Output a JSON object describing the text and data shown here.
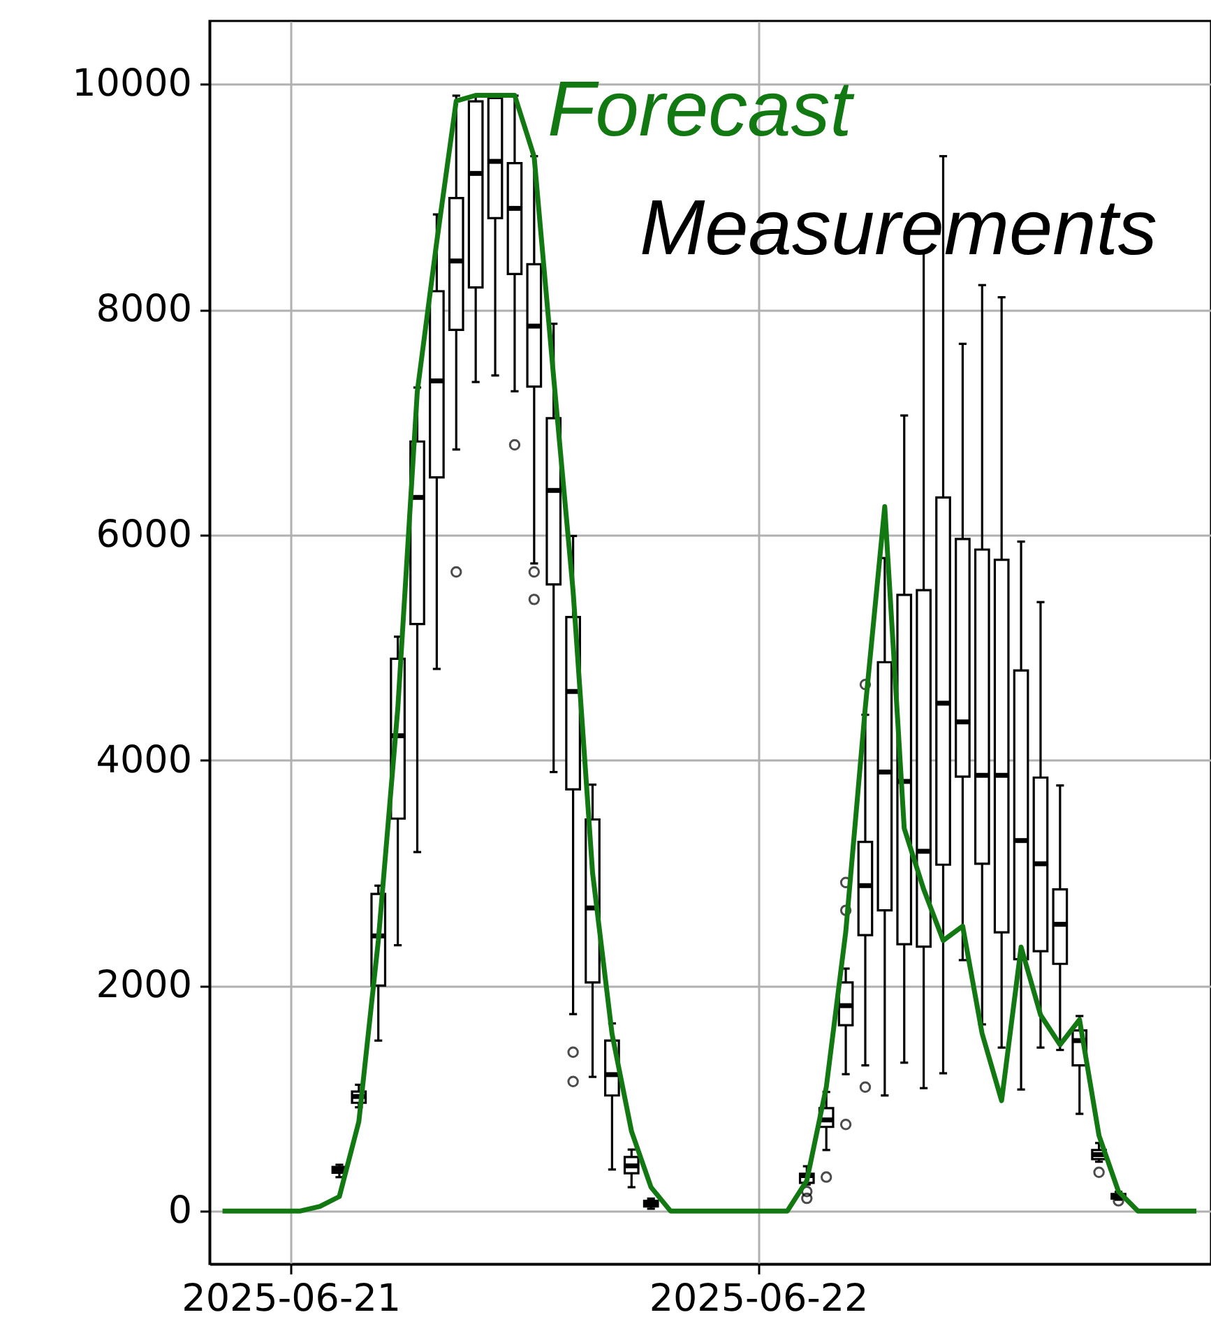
{
  "chart_data": {
    "type": "box",
    "x": [
      "2025-06-20T20:30",
      "2025-06-20T21:30",
      "2025-06-20T22:30",
      "2025-06-20T23:30",
      "2025-06-21T00:30",
      "2025-06-21T01:30",
      "2025-06-21T02:30",
      "2025-06-21T03:30",
      "2025-06-21T04:30",
      "2025-06-21T05:30",
      "2025-06-21T06:30",
      "2025-06-21T07:30",
      "2025-06-21T08:30",
      "2025-06-21T09:30",
      "2025-06-21T10:30",
      "2025-06-21T11:30",
      "2025-06-21T12:30",
      "2025-06-21T13:30",
      "2025-06-21T14:30",
      "2025-06-21T15:30",
      "2025-06-21T16:30",
      "2025-06-21T17:30",
      "2025-06-21T18:30",
      "2025-06-21T19:30",
      "2025-06-21T20:30",
      "2025-06-21T21:30",
      "2025-06-21T22:30",
      "2025-06-21T23:30",
      "2025-06-22T00:30",
      "2025-06-22T01:30",
      "2025-06-22T02:30",
      "2025-06-22T03:30",
      "2025-06-22T04:30",
      "2025-06-22T05:30",
      "2025-06-22T06:30",
      "2025-06-22T07:30",
      "2025-06-22T08:30",
      "2025-06-22T09:30",
      "2025-06-22T10:30",
      "2025-06-22T11:30",
      "2025-06-22T12:30",
      "2025-06-22T13:30",
      "2025-06-22T14:30",
      "2025-06-22T15:30",
      "2025-06-22T16:30",
      "2025-06-22T17:30",
      "2025-06-22T18:30",
      "2025-06-22T19:30",
      "2025-06-22T20:30",
      "2025-06-22T21:30",
      "2025-06-22T22:30"
    ],
    "xlim": [
      "2025-06-20T19:50",
      "2025-06-22T23:15"
    ],
    "xticks": [
      "2025-06-21",
      "2025-06-22"
    ],
    "ylim": [
      -470,
      10560
    ],
    "yticks": [
      0,
      2000,
      4000,
      6000,
      8000,
      10000
    ],
    "grid": true,
    "series": [
      {
        "name": "Measurements",
        "type": "box",
        "color": "#000000",
        "boxes": [
          null,
          null,
          null,
          null,
          null,
          null,
          {
            "low": 300,
            "q1": 340,
            "median": 370,
            "q3": 390,
            "high": 410
          },
          {
            "low": 920,
            "q1": 960,
            "median": 1016,
            "q3": 1060,
            "high": 1120
          },
          {
            "low": 1512,
            "q1": 2000,
            "median": 2441,
            "q3": 2813,
            "high": 2887
          },
          {
            "low": 2358,
            "q1": 3482,
            "median": 4217,
            "q3": 4900,
            "high": 5096
          },
          {
            "low": 3185,
            "q1": 5208,
            "median": 6332,
            "q3": 6828,
            "high": 7307
          },
          {
            "low": 4810,
            "q1": 6510,
            "median": 7366,
            "q3": 8162,
            "high": 8843
          },
          {
            "low": 6757,
            "q1": 7819,
            "median": 8430,
            "q3": 8988,
            "high": 9897,
            "outliers": [
              5671
            ]
          },
          {
            "low": 7356,
            "q1": 8195,
            "median": 9207,
            "q3": 9847,
            "high": 9890
          },
          {
            "low": 7414,
            "q1": 8810,
            "median": 9314,
            "q3": 9876,
            "high": 9900
          },
          {
            "low": 7274,
            "q1": 8315,
            "median": 8897,
            "q3": 9298,
            "high": 9897,
            "outliers": [
              6799
            ]
          },
          {
            "low": 5746,
            "q1": 7315,
            "median": 7852,
            "q3": 8401,
            "high": 9360,
            "outliers": [
              5671,
              5427
            ]
          },
          {
            "low": 3895,
            "q1": 5560,
            "median": 6394,
            "q3": 7035,
            "high": 7873
          },
          {
            "low": 1747,
            "q1": 3742,
            "median": 4610,
            "q3": 5270,
            "high": 5990,
            "outliers": [
              1409,
              1149
            ]
          },
          {
            "low": 1190,
            "q1": 2028,
            "median": 2689,
            "q3": 3474,
            "high": 3783
          },
          {
            "low": 368,
            "q1": 1025,
            "median": 1210,
            "q3": 1512,
            "high": 1664
          },
          {
            "low": 211,
            "q1": 335,
            "median": 400,
            "q3": 479,
            "high": 545
          },
          {
            "low": 20,
            "q1": 40,
            "median": 70,
            "q3": 90,
            "high": 110
          },
          null,
          null,
          null,
          null,
          null,
          null,
          null,
          {
            "low": 235,
            "q1": 250,
            "median": 314,
            "q3": 330,
            "high": 397,
            "outliers": [
              173,
              112
            ]
          },
          {
            "low": 541,
            "q1": 746,
            "median": 808,
            "q3": 913,
            "high": 1056,
            "outliers": [
              301
            ]
          },
          {
            "low": 1214,
            "q1": 1648,
            "median": 1822,
            "q3": 2028,
            "high": 2151,
            "outliers": [
              2915,
              2668,
              768
            ]
          },
          {
            "low": 1292,
            "q1": 2448,
            "median": 2887,
            "q3": 3275,
            "high": 4403,
            "outliers": [
              4672,
              1099
            ]
          },
          {
            "low": 1025,
            "q1": 2668,
            "median": 3895,
            "q3": 4870,
            "high": 5794
          },
          {
            "low": 1316,
            "q1": 2367,
            "median": 3812,
            "q3": 5467,
            "high": 7059
          },
          {
            "low": 1090,
            "q1": 2346,
            "median": 3192,
            "q3": 5509,
            "high": 8513
          },
          {
            "low": 1222,
            "q1": 3073,
            "median": 4506,
            "q3": 6332,
            "high": 9360
          },
          {
            "low": 2226,
            "q1": 3854,
            "median": 4340,
            "q3": 5963,
            "high": 7695
          },
          {
            "low": 1656,
            "q1": 3081,
            "median": 3866,
            "q3": 5869,
            "high": 8216
          },
          {
            "low": 1450,
            "q1": 2473,
            "median": 3866,
            "q3": 5778,
            "high": 8108
          },
          {
            "low": 1078,
            "q1": 2234,
            "median": 3287,
            "q3": 4796,
            "high": 5940
          },
          {
            "low": 1450,
            "q1": 2305,
            "median": 3081,
            "q3": 3846,
            "high": 5403
          },
          {
            "low": 1429,
            "q1": 2193,
            "median": 2544,
            "q3": 2854,
            "high": 3776
          },
          {
            "low": 862,
            "q1": 1292,
            "median": 1512,
            "q3": 1602,
            "high": 1730
          },
          {
            "low": 437,
            "q1": 460,
            "median": 500,
            "q3": 541,
            "high": 603,
            "outliers": [
              343
            ]
          },
          {
            "low": 100,
            "q1": 110,
            "median": 130,
            "q3": 150,
            "high": 170,
            "outliers": [
              90
            ]
          },
          null,
          null,
          null,
          null
        ]
      },
      {
        "name": "Forecast",
        "type": "line",
        "color": "#127812",
        "values": [
          0,
          0,
          0,
          0,
          0,
          40,
          128,
          793,
          2400,
          4460,
          7270,
          8600,
          9850,
          9900,
          9900,
          9900,
          9355,
          7400,
          5500,
          3000,
          1570,
          706,
          211,
          0,
          0,
          0,
          0,
          0,
          0,
          0,
          270,
          1100,
          2480,
          4465,
          6250,
          3395,
          2854,
          2400,
          2528,
          1574,
          979,
          2342,
          1739,
          1475,
          1698,
          669,
          173,
          0,
          0,
          0,
          0
        ]
      }
    ]
  }
}
